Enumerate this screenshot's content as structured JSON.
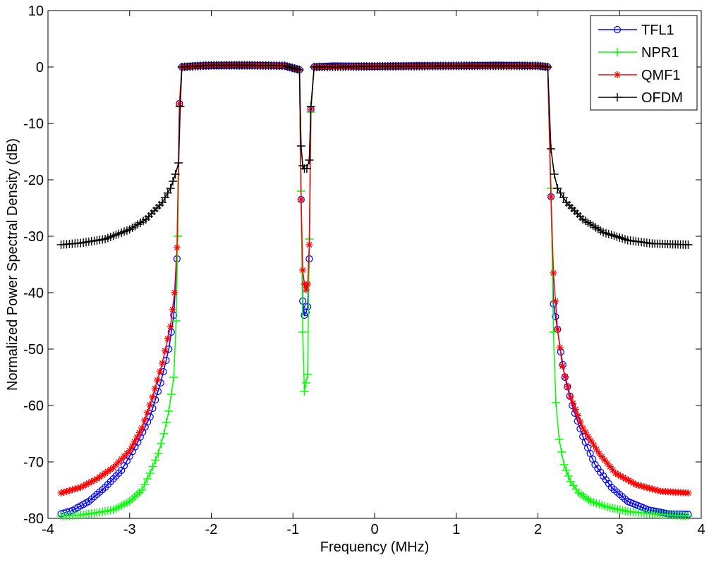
{
  "chart_data": {
    "type": "line",
    "title": "",
    "xlabel": "Frequency (MHz)",
    "ylabel": "Normalized Power Spectral Density (dB)",
    "xlim": [
      -4,
      4
    ],
    "ylim": [
      -80,
      10
    ],
    "xticks": [
      -4,
      -3,
      -2,
      -1,
      0,
      1,
      2,
      3,
      4
    ],
    "yticks": [
      10,
      0,
      -10,
      -20,
      -30,
      -40,
      -50,
      -60,
      -70,
      -80
    ],
    "grid": false,
    "legend_position": "top-right",
    "series": [
      {
        "name": "TFL1",
        "color": "#0000ff",
        "marker": "circle",
        "points": [
          [
            -3.84,
            -79.2
          ],
          [
            -3.7,
            -78.6
          ],
          [
            -3.5,
            -77
          ],
          [
            -3.3,
            -74.5
          ],
          [
            -3.1,
            -71.5
          ],
          [
            -2.9,
            -66.5
          ],
          [
            -2.75,
            -62
          ],
          [
            -2.62,
            -56
          ],
          [
            -2.52,
            -50
          ],
          [
            -2.46,
            -44
          ],
          [
            -2.42,
            -34
          ],
          [
            -2.39,
            -6.5
          ],
          [
            -2.36,
            0
          ],
          [
            -2.2,
            0.2
          ],
          [
            -1.8,
            0.3
          ],
          [
            -1.4,
            0.3
          ],
          [
            -1.1,
            0.2
          ],
          [
            -0.92,
            -0.5
          ],
          [
            -0.9,
            -23.5
          ],
          [
            -0.88,
            -41.5
          ],
          [
            -0.86,
            -44
          ],
          [
            -0.84,
            -43.5
          ],
          [
            -0.82,
            -42.5
          ],
          [
            -0.8,
            -34
          ],
          [
            -0.78,
            -7.5
          ],
          [
            -0.74,
            0
          ],
          [
            -0.5,
            0.2
          ],
          [
            0,
            0.1
          ],
          [
            0.5,
            0.2
          ],
          [
            1,
            0.2
          ],
          [
            1.5,
            0.3
          ],
          [
            2,
            0.2
          ],
          [
            2.12,
            0
          ],
          [
            2.16,
            -23
          ],
          [
            2.19,
            -42
          ],
          [
            2.24,
            -46.5
          ],
          [
            2.28,
            -50.5
          ],
          [
            2.33,
            -55
          ],
          [
            2.42,
            -60
          ],
          [
            2.55,
            -65.5
          ],
          [
            2.7,
            -70.5
          ],
          [
            2.9,
            -74.5
          ],
          [
            3.1,
            -77
          ],
          [
            3.35,
            -78.5
          ],
          [
            3.6,
            -79.2
          ],
          [
            3.84,
            -79.3
          ]
        ]
      },
      {
        "name": "NPR1",
        "color": "#00ff00",
        "marker": "plus",
        "points": [
          [
            -3.84,
            -79.6
          ],
          [
            -3.6,
            -79.4
          ],
          [
            -3.4,
            -79
          ],
          [
            -3.2,
            -78.5
          ],
          [
            -3.0,
            -77
          ],
          [
            -2.85,
            -75
          ],
          [
            -2.75,
            -72
          ],
          [
            -2.65,
            -68.5
          ],
          [
            -2.58,
            -65
          ],
          [
            -2.52,
            -61
          ],
          [
            -2.46,
            -55
          ],
          [
            -2.43,
            -45
          ],
          [
            -2.41,
            -30
          ],
          [
            -2.39,
            -7
          ],
          [
            -2.36,
            0
          ],
          [
            -2,
            0.3
          ],
          [
            -1.5,
            0.3
          ],
          [
            -1.1,
            0.2
          ],
          [
            -0.92,
            -0.5
          ],
          [
            -0.9,
            -22
          ],
          [
            -0.88,
            -47
          ],
          [
            -0.86,
            -57.5
          ],
          [
            -0.84,
            -56
          ],
          [
            -0.82,
            -54.5
          ],
          [
            -0.8,
            -30.5
          ],
          [
            -0.78,
            -8
          ],
          [
            -0.74,
            0
          ],
          [
            0,
            0.1
          ],
          [
            1,
            0.2
          ],
          [
            2,
            0.2
          ],
          [
            2.12,
            0
          ],
          [
            2.16,
            -21.5
          ],
          [
            2.19,
            -47
          ],
          [
            2.22,
            -59.5
          ],
          [
            2.26,
            -66
          ],
          [
            2.32,
            -70.5
          ],
          [
            2.4,
            -73.5
          ],
          [
            2.5,
            -75.5
          ],
          [
            2.65,
            -77
          ],
          [
            2.85,
            -78
          ],
          [
            3.1,
            -78.8
          ],
          [
            3.4,
            -79.2
          ],
          [
            3.84,
            -79.6
          ]
        ]
      },
      {
        "name": "QMF1",
        "color": "#ff0000",
        "marker": "star",
        "points": [
          [
            -3.84,
            -75.5
          ],
          [
            -3.6,
            -74.5
          ],
          [
            -3.4,
            -73
          ],
          [
            -3.2,
            -71
          ],
          [
            -3.0,
            -68
          ],
          [
            -2.85,
            -64
          ],
          [
            -2.72,
            -58.5
          ],
          [
            -2.6,
            -52.5
          ],
          [
            -2.5,
            -46
          ],
          [
            -2.45,
            -40
          ],
          [
            -2.42,
            -32
          ],
          [
            -2.39,
            -6.5
          ],
          [
            -2.36,
            0
          ],
          [
            -2,
            0.3
          ],
          [
            -1.5,
            0.3
          ],
          [
            -1.1,
            0.2
          ],
          [
            -0.92,
            -0.5
          ],
          [
            -0.9,
            -23.5
          ],
          [
            -0.88,
            -36
          ],
          [
            -0.86,
            -38.5
          ],
          [
            -0.84,
            -39.5
          ],
          [
            -0.82,
            -38.5
          ],
          [
            -0.8,
            -31.5
          ],
          [
            -0.78,
            -7.5
          ],
          [
            -0.74,
            0
          ],
          [
            0,
            0.1
          ],
          [
            1,
            0.2
          ],
          [
            2,
            0.2
          ],
          [
            2.12,
            0
          ],
          [
            2.16,
            -23
          ],
          [
            2.19,
            -36.5
          ],
          [
            2.24,
            -46.5
          ],
          [
            2.3,
            -53
          ],
          [
            2.4,
            -58.5
          ],
          [
            2.55,
            -64
          ],
          [
            2.75,
            -68.5
          ],
          [
            2.95,
            -72
          ],
          [
            3.2,
            -74
          ],
          [
            3.5,
            -75.2
          ],
          [
            3.84,
            -75.5
          ]
        ]
      },
      {
        "name": "OFDM",
        "color": "#000000",
        "marker": "plus",
        "points": [
          [
            -3.84,
            -31.5
          ],
          [
            -3.6,
            -31.2
          ],
          [
            -3.3,
            -30.5
          ],
          [
            -3.0,
            -28.8
          ],
          [
            -2.8,
            -27
          ],
          [
            -2.6,
            -24
          ],
          [
            -2.5,
            -21.5
          ],
          [
            -2.44,
            -19
          ],
          [
            -2.4,
            -17
          ],
          [
            -2.38,
            -7
          ],
          [
            -2.36,
            0
          ],
          [
            -2,
            0.3
          ],
          [
            -1.5,
            0.3
          ],
          [
            -1.1,
            0.2
          ],
          [
            -0.92,
            -0.5
          ],
          [
            -0.9,
            -14
          ],
          [
            -0.88,
            -17.5
          ],
          [
            -0.86,
            -18
          ],
          [
            -0.83,
            -18
          ],
          [
            -0.8,
            -16.5
          ],
          [
            -0.78,
            -7
          ],
          [
            -0.74,
            0
          ],
          [
            0,
            0.1
          ],
          [
            1,
            0.2
          ],
          [
            2,
            0.2
          ],
          [
            2.12,
            0
          ],
          [
            2.16,
            -14.5
          ],
          [
            2.2,
            -19
          ],
          [
            2.24,
            -21.5
          ],
          [
            2.35,
            -24
          ],
          [
            2.55,
            -27
          ],
          [
            2.8,
            -29.3
          ],
          [
            3.1,
            -30.7
          ],
          [
            3.4,
            -31.3
          ],
          [
            3.84,
            -31.5
          ]
        ]
      }
    ]
  }
}
